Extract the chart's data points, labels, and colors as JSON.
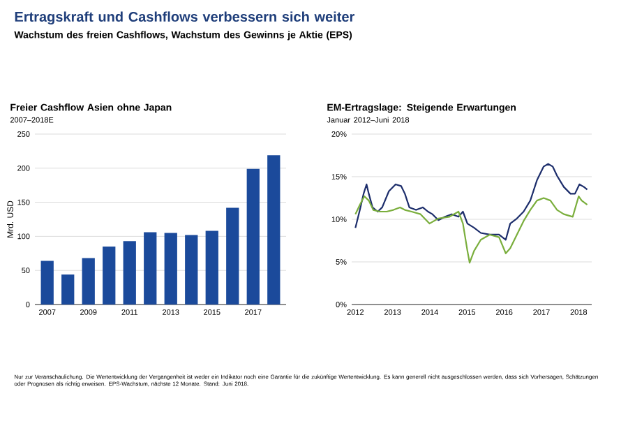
{
  "chart_data": [
    {
      "type": "other",
      "title": "Ertragskraft und Cashflows verbessern sich weiter",
      "subtitle": "Wachstum des freien Cashflows, Wachstum des Gewinns je Aktie (EPS)",
      "annotations": [
        "Nur zur Veranschaulichung. Die Wertentwicklung der Vergangenheit ist weder ein Indikator noch eine Garantie für die zukünftige Wertentwicklung. Es kann generell nicht ausgeschlossen werden, dass sich Vorhersagen, Schätzungen oder Prognosen als richtig erweisen. EPS-Wachstum, nächste 12 Monate. Stand: Juni 2018."
      ]
    },
    {
      "type": "bar",
      "title": "Freier Cashflow Asien ohne Japan",
      "subtitle": "2007–2018E",
      "ylabel": "Mrd. USD",
      "categories": [
        "2007",
        null,
        "2009",
        null,
        "2011",
        null,
        "2013",
        null,
        "2015",
        null,
        "2017",
        null
      ],
      "values": [
        64,
        44,
        68,
        85,
        93,
        106,
        105,
        102,
        108,
        142,
        199,
        219
      ],
      "color": "#1b4a9b",
      "ylim": [
        0,
        250
      ],
      "yticks": [
        0,
        50,
        100,
        150,
        200,
        250
      ],
      "grid": "y"
    },
    {
      "type": "line",
      "title": "EM-Ertragslage: Steigende Erwartungen",
      "subtitle": "Januar 2012–Juni 2018",
      "series": [
        {
          "color": "#1c2d6b",
          "x": [
            2012.0,
            2012.12,
            2012.22,
            2012.3,
            2012.36,
            2012.46,
            2012.6,
            2012.72,
            2012.9,
            2013.08,
            2013.23,
            2013.33,
            2013.45,
            2013.63,
            2013.81,
            2013.95,
            2014.07,
            2014.23,
            2014.41,
            2014.59,
            2014.77,
            2014.89,
            2015.01,
            2015.19,
            2015.37,
            2015.61,
            2015.86,
            2016.04,
            2016.16,
            2016.34,
            2016.52,
            2016.7,
            2016.88,
            2017.06,
            2017.18,
            2017.3,
            2017.42,
            2017.6,
            2017.78,
            2017.9,
            2018.02,
            2018.14,
            2018.23
          ],
          "values": [
            9.0,
            11.1,
            13.0,
            14.1,
            13.0,
            11.4,
            10.9,
            11.4,
            13.3,
            14.1,
            13.9,
            13.0,
            11.4,
            11.1,
            11.4,
            10.9,
            10.6,
            9.9,
            10.3,
            10.6,
            10.3,
            10.9,
            9.5,
            9.0,
            8.4,
            8.2,
            8.2,
            7.6,
            9.5,
            10.1,
            10.9,
            12.2,
            14.6,
            16.2,
            16.5,
            16.2,
            15.1,
            13.8,
            13.0,
            13.0,
            14.1,
            13.8,
            13.5
          ]
        },
        {
          "color": "#7aae3c",
          "x": [
            2012.0,
            2012.12,
            2012.24,
            2012.36,
            2012.48,
            2012.66,
            2012.84,
            2013.02,
            2013.2,
            2013.33,
            2013.51,
            2013.75,
            2013.99,
            2014.23,
            2014.53,
            2014.77,
            2014.89,
            2015.01,
            2015.07,
            2015.19,
            2015.37,
            2015.61,
            2015.86,
            2016.04,
            2016.16,
            2016.34,
            2016.52,
            2016.7,
            2016.88,
            2017.06,
            2017.24,
            2017.42,
            2017.6,
            2017.84,
            2018.0,
            2018.08,
            2018.23
          ],
          "values": [
            10.6,
            11.7,
            12.7,
            12.2,
            11.1,
            10.9,
            10.9,
            11.1,
            11.4,
            11.1,
            10.9,
            10.6,
            9.5,
            10.1,
            10.3,
            10.9,
            9.5,
            6.3,
            4.9,
            6.3,
            7.6,
            8.2,
            7.9,
            6.0,
            6.6,
            8.2,
            9.8,
            11.1,
            12.2,
            12.5,
            12.2,
            11.1,
            10.6,
            10.3,
            12.7,
            12.2,
            11.7
          ]
        }
      ],
      "xlim": [
        2011.9,
        2018.35
      ],
      "xticks": [
        2012,
        2013,
        2014,
        2015,
        2016,
        2017,
        2018
      ],
      "ylim": [
        0,
        20
      ],
      "yticks": [
        {
          "value": 0,
          "label": "0%"
        },
        {
          "value": 5,
          "label": "5%"
        },
        {
          "value": 10,
          "label": "10%"
        },
        {
          "value": 15,
          "label": "15%"
        },
        {
          "value": 20,
          "label": "20%"
        }
      ],
      "grid": "y"
    }
  ]
}
